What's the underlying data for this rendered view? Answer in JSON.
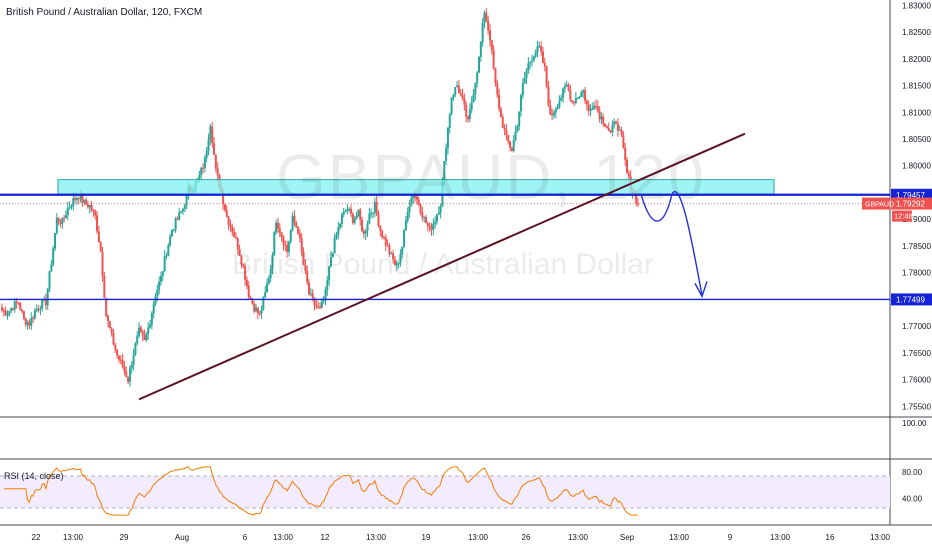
{
  "header": {
    "title": "British Pound / Australian Dollar, 120, FXCM"
  },
  "watermark": {
    "symbol": "GBPAUD, 120",
    "name": "British Pound / Australian Dollar"
  },
  "chart_data": {
    "type": "candlestick",
    "symbol_tag": "GBPAUD",
    "price_axis": {
      "range": [
        1.753,
        1.831
      ],
      "ticks": [
        "1.83000",
        "1.82500",
        "1.82000",
        "1.81500",
        "1.81000",
        "1.80500",
        "1.80000",
        "1.79500",
        "1.79000",
        "1.78500",
        "1.78000",
        "1.77500",
        "1.77000",
        "1.76500",
        "1.76000",
        "1.75500"
      ]
    },
    "time_axis": {
      "ticks": [
        "22",
        "13:00",
        "29",
        "Aug",
        "6",
        "13:00",
        "12",
        "13:00",
        "19",
        "13:00",
        "26",
        "13:00",
        "Sep",
        "13:00",
        "9",
        "13:00",
        "16",
        "13:00"
      ]
    },
    "price_path": [
      [
        1.773,
        1.7725,
        1.7738,
        1.7745,
        1.7712,
        1.7705,
        1.7728,
        1.774,
        1.7745,
        1.782,
        1.79,
        1.7895,
        1.792,
        1.7935,
        1.7945,
        1.793,
        1.7925,
        1.7905,
        1.784,
        1.772,
        1.768,
        1.7645,
        1.7625,
        1.76
      ],
      [
        1.765,
        1.769,
        1.767,
        1.771,
        1.776,
        1.779,
        1.784,
        1.788,
        1.79,
        1.792,
        1.7955,
        1.796,
        1.798,
        1.801,
        1.808,
        1.799,
        1.795,
        1.7905,
        1.788,
        1.785,
        1.781,
        1.776,
        1.7735,
        1.772
      ],
      [
        1.776,
        1.781,
        1.79,
        1.787,
        1.784,
        1.79,
        1.788,
        1.7815,
        1.776,
        1.774,
        1.773,
        1.776,
        1.783,
        1.787,
        1.7905,
        1.792,
        1.79,
        1.791,
        1.787,
        1.791,
        1.7925,
        1.788,
        1.7855,
        1.783
      ],
      [
        1.781,
        1.785,
        1.792,
        1.795,
        1.793,
        1.79,
        1.788,
        1.79,
        1.793,
        1.804,
        1.813,
        1.815,
        1.812,
        1.808,
        1.814,
        1.82,
        1.829,
        1.824,
        1.815,
        1.809,
        1.805,
        1.803,
        1.808,
        1.815
      ],
      [
        1.819,
        1.821,
        1.822,
        1.818,
        1.809,
        1.811,
        1.813,
        1.815,
        1.812,
        1.813,
        1.814,
        1.81,
        1.812,
        1.8095,
        1.808,
        1.806,
        1.8085,
        1.805,
        1.7985,
        1.795,
        1.7929
      ]
    ],
    "support_resistance": [
      {
        "level": 1.79457,
        "label": "1.79457"
      },
      {
        "level": 1.77499,
        "label": "1.77499"
      }
    ],
    "zone": {
      "from": 1.7947,
      "to": 1.7974
    },
    "trendline": {
      "from": {
        "x": "Jul 31",
        "price": 1.7563
      },
      "to": {
        "x": "Sep 4",
        "price": 1.806
      }
    },
    "forecast": {
      "from": 1.7947,
      "to": 1.775
    },
    "last_price": {
      "label": "1.79292",
      "symbol": "GBPAUD",
      "timer": "12:48"
    },
    "mini_axis": {
      "ticks": [
        "100.00"
      ]
    },
    "rsi": {
      "label": "RSI (14, close)",
      "ticks": [
        "80.00",
        "40.00"
      ],
      "band": [
        30,
        70
      ],
      "range": [
        0,
        100
      ]
    },
    "colors": {
      "up": "#26a69a",
      "down": "#ef5350",
      "support": "#1423d6",
      "zone": "#7ff2ef",
      "trend": "#5b1322",
      "rsi": "#f57c00",
      "rsi_band": "#f3ecff",
      "price_tag": "#ef5350"
    }
  }
}
